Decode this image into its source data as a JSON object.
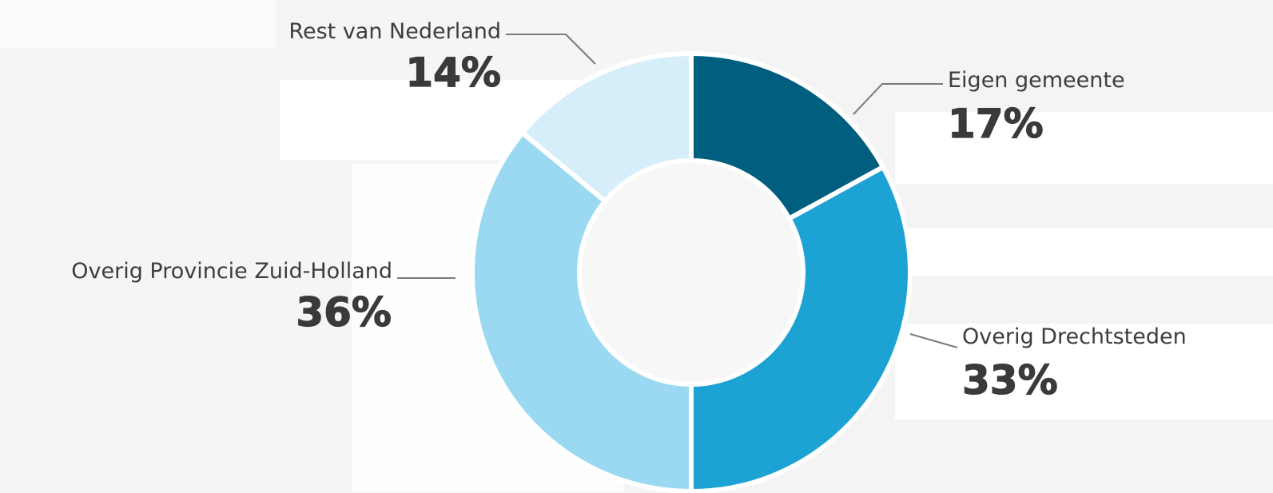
{
  "chart_data": {
    "type": "pie",
    "donut": true,
    "title": "",
    "categories": [
      "Eigen gemeente",
      "Overig Drechtsteden",
      "Overig Provincie Zuid-Holland",
      "Rest van Nederland"
    ],
    "values": [
      17,
      33,
      36,
      14
    ],
    "value_labels": [
      "17%",
      "33%",
      "36%",
      "14%"
    ],
    "colors": [
      "#005e7e",
      "#1ca3d4",
      "#9bd9f2",
      "#d6eef9"
    ],
    "start_angle": "12 o'clock, clockwise",
    "legend": "none (direct labels)"
  },
  "labels": {
    "eigen": {
      "name": "Eigen gemeente",
      "pct": "17%"
    },
    "drecht": {
      "name": "Overig Drechtsteden",
      "pct": "33%"
    },
    "provincie": {
      "name": "Overig Provincie Zuid-Holland",
      "pct": "36%"
    },
    "rest": {
      "name": "Rest van Nederland",
      "pct": "14%"
    }
  }
}
